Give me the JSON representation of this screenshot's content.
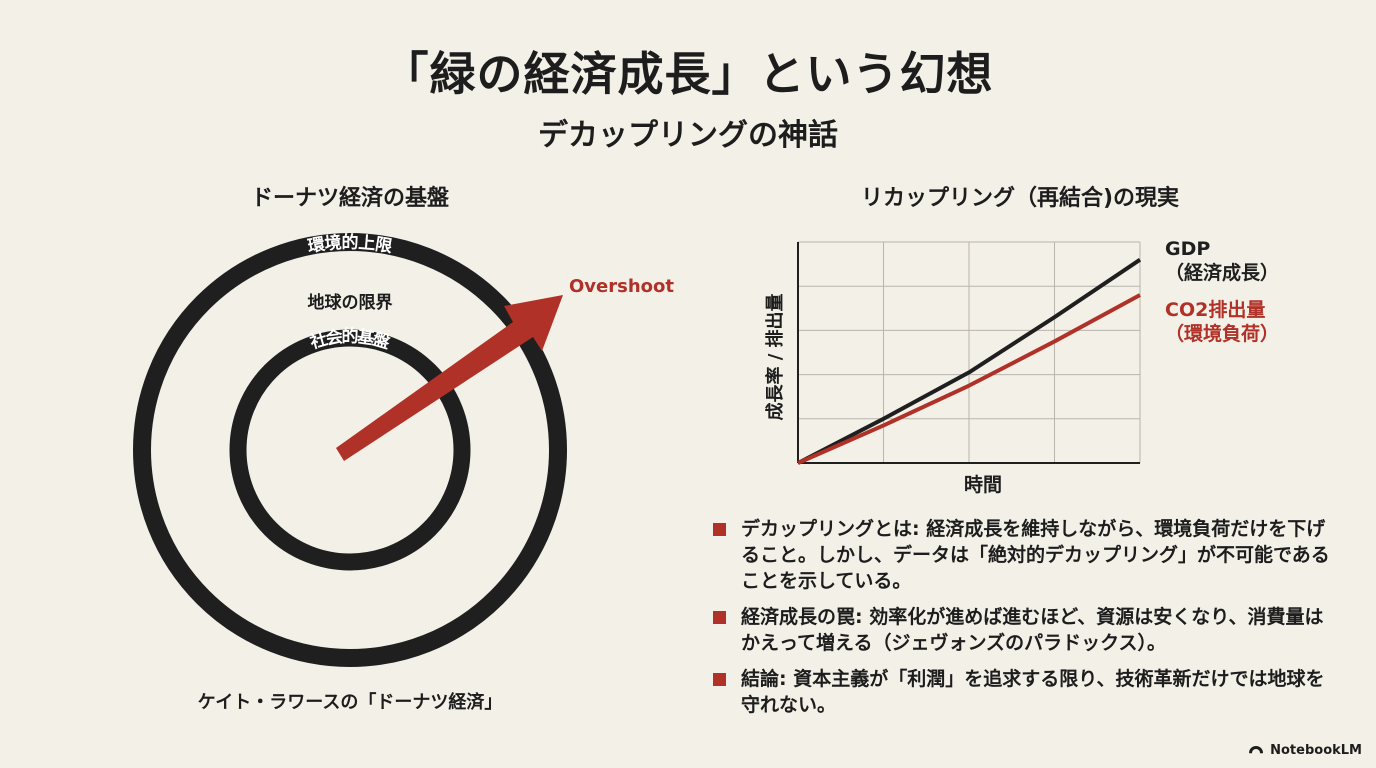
{
  "title": "「緑の経済成長」という幻想",
  "subtitle": "デカップリングの神話",
  "donut": {
    "heading": "ドーナツ経済の基盤",
    "outer_label": "環境的上限",
    "between_label": "地球の限界",
    "inner_label": "社会的基盤",
    "arrow_label": "Overshoot",
    "caption": "ケイト・ラワースの「ドーナツ経済」",
    "colors": {
      "ring": "#1f1f1f",
      "arrow": "#b03127",
      "label_on_ring": "#ffffff"
    }
  },
  "chart_data": {
    "type": "line",
    "title": "リカップリング（再結合)の現実",
    "xlabel": "時間",
    "ylabel": "成長率 / 排出量",
    "grid": true,
    "x": [
      0,
      1,
      2,
      3,
      4
    ],
    "xlim": [
      0,
      4
    ],
    "ylim": [
      0,
      5
    ],
    "series": [
      {
        "name_line1": "GDP",
        "name_line2": "（経済成長）",
        "color": "#1f1f1f",
        "x": [
          0,
          1,
          2,
          3,
          4
        ],
        "values": [
          0,
          1.0,
          2.05,
          3.3,
          4.6
        ]
      },
      {
        "name_line1": "CO2排出量",
        "name_line2": "（環境負荷）",
        "color": "#b03127",
        "x": [
          0,
          1,
          2,
          3,
          4
        ],
        "values": [
          0,
          0.85,
          1.75,
          2.75,
          3.8
        ]
      }
    ]
  },
  "bullets": [
    {
      "text": "デカップリングとは: 経済成長を維持しながら、環境負荷だけを下げること。しかし、データは「絶対的デカップリング」が不可能であることを示している。"
    },
    {
      "text": "経済成長の罠: 効率化が進めば進むほど、資源は安くなり、消費量はかえって増える（ジェヴォンズのパラドックス）。"
    },
    {
      "text": "結論: 資本主義が「利潤」を追求する限り、技術革新だけでは地球を守れない。"
    }
  ],
  "footer": {
    "brand": "NotebookLM",
    "icon": "notebooklm-logo-icon"
  }
}
